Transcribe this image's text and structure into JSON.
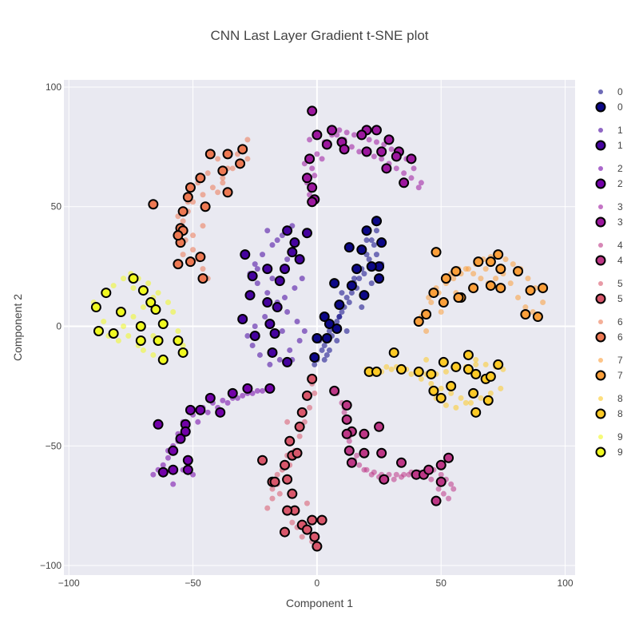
{
  "chart_data": {
    "type": "scatter",
    "title": "CNN Last Layer Gradient t-SNE plot",
    "xlabel": "Component 1",
    "ylabel": "Component 2",
    "xlim": [
      -102,
      104
    ],
    "ylim": [
      -104,
      103
    ],
    "x_ticks": [
      -100,
      -50,
      0,
      50,
      100
    ],
    "y_ticks": [
      -100,
      -50,
      0,
      50,
      100
    ],
    "x_tick_labels": [
      "−100",
      "−50",
      "0",
      "50",
      "100"
    ],
    "y_tick_labels": [
      "−100",
      "−50",
      "0",
      "50",
      "100"
    ],
    "grid": true,
    "legend_placement": "right",
    "plot_bg": "#e9e9f1",
    "colors": [
      "#0d0887",
      "#46039f",
      "#7201a8",
      "#9c179e",
      "#bd3786",
      "#d8576b",
      "#ed7953",
      "#fb9f3a",
      "#fdca26",
      "#f0f921"
    ],
    "legend": [
      {
        "label": "0",
        "color": "#0d0887"
      },
      {
        "label": "0",
        "color": "#0d0887"
      },
      {
        "label": "1",
        "color": "#46039f"
      },
      {
        "label": "1",
        "color": "#46039f"
      },
      {
        "label": "2",
        "color": "#7201a8"
      },
      {
        "label": "2",
        "color": "#7201a8"
      },
      {
        "label": "3",
        "color": "#9c179e"
      },
      {
        "label": "3",
        "color": "#9c179e"
      },
      {
        "label": "4",
        "color": "#bd3786"
      },
      {
        "label": "4",
        "color": "#bd3786"
      },
      {
        "label": "5",
        "color": "#d8576b"
      },
      {
        "label": "5",
        "color": "#d8576b"
      },
      {
        "label": "6",
        "color": "#ed7953"
      },
      {
        "label": "6",
        "color": "#ed7953"
      },
      {
        "label": "7",
        "color": "#fb9f3a"
      },
      {
        "label": "7",
        "color": "#fb9f3a"
      },
      {
        "label": "8",
        "color": "#fdca26"
      },
      {
        "label": "8",
        "color": "#fdca26"
      },
      {
        "label": "9",
        "color": "#f0f921"
      },
      {
        "label": "9",
        "color": "#f0f921"
      }
    ],
    "series": [
      {
        "name": "0",
        "marker": "small",
        "x": [
          0,
          3,
          5,
          8,
          10,
          12,
          15,
          18,
          20,
          22,
          24,
          25,
          2,
          6,
          9,
          13,
          16,
          19,
          21,
          23,
          1,
          4,
          7,
          11,
          14,
          17,
          26,
          -1,
          3,
          8,
          12,
          18,
          22,
          24,
          10,
          15,
          20,
          5,
          9
        ],
        "y": [
          -14,
          -8,
          -2,
          2,
          6,
          12,
          18,
          24,
          30,
          36,
          40,
          44,
          -10,
          -4,
          4,
          10,
          16,
          22,
          28,
          34,
          -6,
          -12,
          0,
          8,
          14,
          20,
          26,
          -16,
          -14,
          -6,
          -2,
          8,
          18,
          30,
          14,
          20,
          36,
          -10,
          4
        ]
      },
      {
        "name": "0",
        "marker": "large",
        "x": [
          24,
          20,
          26,
          13,
          18,
          25,
          22,
          16,
          7,
          14,
          19,
          25,
          9,
          3,
          5,
          8,
          0,
          4,
          -1,
          24
        ],
        "y": [
          44,
          40,
          35,
          33,
          32,
          25,
          25,
          24,
          18,
          17,
          13,
          20,
          9,
          4,
          1,
          -1,
          -5,
          -5,
          -13,
          44
        ]
      },
      {
        "name": "1",
        "marker": "small",
        "x": [
          -10,
          -14,
          -18,
          -22,
          -25,
          -27,
          -24,
          -20,
          -16,
          -12,
          -8,
          -5,
          -7,
          -11,
          -15,
          -19,
          -23,
          -26,
          -28,
          -25,
          -21,
          -17,
          -13,
          -9,
          -6,
          -12,
          -16,
          -20,
          -24,
          -10,
          -14,
          -18
        ],
        "y": [
          42,
          38,
          34,
          30,
          26,
          22,
          18,
          14,
          10,
          6,
          2,
          -2,
          -6,
          -10,
          -14,
          -16,
          -12,
          -8,
          -4,
          0,
          4,
          8,
          12,
          16,
          20,
          28,
          36,
          40,
          24,
          -14,
          -2,
          20
        ]
      },
      {
        "name": "1",
        "marker": "large",
        "x": [
          -4,
          -12,
          -29,
          -10,
          -20,
          -26,
          -13,
          -15,
          -27,
          -20,
          -16,
          -30,
          -19,
          -17,
          -18,
          -25,
          -12,
          -7,
          -9
        ],
        "y": [
          39,
          40,
          30,
          31,
          24,
          21,
          24,
          19,
          13,
          10,
          8,
          3,
          1,
          -3,
          -11,
          -4,
          -15,
          28,
          35
        ]
      },
      {
        "name": "2",
        "marker": "small",
        "x": [
          -18,
          -22,
          -26,
          -30,
          -34,
          -38,
          -42,
          -46,
          -50,
          -54,
          -56,
          -58,
          -60,
          -62,
          -64,
          -66,
          -60,
          -56,
          -52,
          -48,
          -44,
          -40,
          -36,
          -32,
          -28,
          -24,
          -20,
          -54,
          -50,
          -58
        ],
        "y": [
          -26,
          -27,
          -28,
          -29,
          -30,
          -31,
          -32,
          -34,
          -37,
          -40,
          -45,
          -50,
          -55,
          -58,
          -60,
          -62,
          -52,
          -48,
          -44,
          -40,
          -36,
          -34,
          -32,
          -30,
          -28,
          -27,
          -26,
          -60,
          -62,
          -66
        ]
      },
      {
        "name": "2",
        "marker": "large",
        "x": [
          -19,
          -28,
          -34,
          -43,
          -39,
          -47,
          -51,
          -53,
          -64,
          -55,
          -58,
          -52,
          -52,
          -58,
          -62,
          -53
        ],
        "y": [
          -26,
          -26,
          -28,
          -30,
          -36,
          -35,
          -35,
          -41,
          -41,
          -47,
          -52,
          -56,
          -60,
          -60,
          -61,
          -44
        ]
      },
      {
        "name": "3",
        "marker": "small",
        "x": [
          -4,
          -2,
          0,
          3,
          6,
          9,
          12,
          15,
          18,
          21,
          24,
          27,
          30,
          33,
          36,
          39,
          42,
          -3,
          -1,
          2,
          5,
          8,
          11,
          14,
          17,
          20,
          23,
          26,
          29,
          32,
          35,
          38,
          41,
          -5,
          -3
        ],
        "y": [
          60,
          66,
          72,
          77,
          80,
          82,
          81,
          80,
          79,
          78,
          77,
          76,
          74,
          72,
          70,
          66,
          60,
          55,
          63,
          70,
          76,
          80,
          78,
          75,
          73,
          72,
          71,
          70,
          68,
          66,
          64,
          62,
          58,
          68,
          78
        ]
      },
      {
        "name": "3",
        "marker": "large",
        "x": [
          -2,
          0,
          4,
          6,
          10,
          11,
          20,
          18,
          24,
          29,
          20,
          26,
          28,
          -3,
          -2,
          -4,
          -1,
          -2,
          33,
          32,
          38,
          35
        ],
        "y": [
          90,
          80,
          76,
          82,
          77,
          74,
          82,
          80,
          82,
          78,
          73,
          73,
          66,
          70,
          58,
          62,
          53,
          52,
          73,
          71,
          70,
          60
        ]
      },
      {
        "name": "4",
        "marker": "small",
        "x": [
          8,
          10,
          11,
          12,
          12,
          13,
          14,
          15,
          17,
          20,
          23,
          26,
          29,
          32,
          35,
          38,
          41,
          44,
          47,
          50,
          52,
          54,
          55,
          11,
          13,
          16,
          19,
          22,
          25,
          28,
          31,
          34,
          37,
          40,
          43,
          46,
          49,
          51,
          53
        ],
        "y": [
          -28,
          -32,
          -36,
          -40,
          -44,
          -48,
          -52,
          -56,
          -58,
          -60,
          -61,
          -62,
          -62,
          -62,
          -62,
          -61,
          -61,
          -60,
          -60,
          -62,
          -64,
          -66,
          -68,
          -34,
          -46,
          -54,
          -60,
          -62,
          -63,
          -64,
          -64,
          -63,
          -62,
          -62,
          -62,
          -64,
          -68,
          -70,
          -72
        ]
      },
      {
        "name": "4",
        "marker": "large",
        "x": [
          7,
          12,
          12,
          14,
          12,
          13,
          14,
          19,
          19,
          25,
          26,
          34,
          27,
          40,
          43,
          45,
          50,
          50,
          53,
          48
        ],
        "y": [
          -27,
          -33,
          -39,
          -44,
          -45,
          -52,
          -57,
          -45,
          -53,
          -42,
          -53,
          -57,
          -64,
          -62,
          -62,
          -60,
          -58,
          -65,
          -55,
          -73
        ]
      },
      {
        "name": "5",
        "marker": "small",
        "x": [
          -2,
          -4,
          -6,
          -8,
          -10,
          -12,
          -14,
          -16,
          -18,
          -20,
          -15,
          -13,
          -11,
          -9,
          -7,
          -5,
          -3,
          -1,
          2,
          -10,
          -14,
          -6,
          -8,
          -12,
          -4,
          -2,
          0,
          -16,
          -18,
          -12
        ],
        "y": [
          -24,
          -30,
          -36,
          -42,
          -48,
          -54,
          -60,
          -66,
          -72,
          -76,
          -70,
          -64,
          -58,
          -52,
          -46,
          -40,
          -34,
          -28,
          -80,
          -82,
          -86,
          -88,
          -84,
          -78,
          -74,
          -90,
          -92,
          -62,
          -68,
          -40
        ]
      },
      {
        "name": "5",
        "marker": "large",
        "x": [
          -2,
          -4,
          -6,
          -7,
          -11,
          -10,
          -8,
          -13,
          -22,
          -18,
          -12,
          -10,
          -17,
          -9,
          -12,
          -6,
          -4,
          -2,
          2,
          0,
          -13,
          -1
        ],
        "y": [
          -22,
          -29,
          -36,
          -42,
          -48,
          -54,
          -53,
          -58,
          -56,
          -65,
          -64,
          -70,
          -65,
          -77,
          -77,
          -83,
          -85,
          -81,
          -81,
          -92,
          -86,
          -88
        ]
      },
      {
        "name": "6",
        "marker": "small",
        "x": [
          -30,
          -28,
          -34,
          -38,
          -42,
          -46,
          -50,
          -52,
          -54,
          -55,
          -53,
          -50,
          -48,
          -46,
          -44,
          -40,
          -36,
          -32,
          -28,
          -56,
          -54,
          -48,
          -44,
          -40,
          -36,
          -50,
          -46,
          -52,
          -38
        ],
        "y": [
          75,
          70,
          66,
          62,
          58,
          55,
          52,
          48,
          44,
          40,
          36,
          32,
          28,
          24,
          20,
          56,
          66,
          72,
          78,
          46,
          30,
          60,
          64,
          70,
          72,
          38,
          42,
          52,
          60
        ]
      },
      {
        "name": "6",
        "marker": "large",
        "x": [
          -66,
          -43,
          -36,
          -30,
          -31,
          -38,
          -47,
          -51,
          -52,
          -36,
          -45,
          -54,
          -55,
          -54,
          -55,
          -56,
          -51,
          -56,
          -47,
          -46
        ],
        "y": [
          51,
          72,
          72,
          74,
          68,
          65,
          62,
          58,
          54,
          56,
          50,
          48,
          41,
          40,
          35,
          38,
          27,
          26,
          29,
          20
        ]
      },
      {
        "name": "7",
        "marker": "small",
        "x": [
          40,
          43,
          46,
          49,
          52,
          55,
          58,
          61,
          64,
          67,
          70,
          73,
          76,
          79,
          82,
          85,
          88,
          91,
          42,
          45,
          48,
          51,
          54,
          57,
          60,
          63,
          66,
          69,
          72,
          75,
          78,
          81,
          84,
          87,
          90,
          44,
          50,
          56,
          62,
          68
        ],
        "y": [
          2,
          6,
          10,
          14,
          18,
          20,
          22,
          24,
          26,
          28,
          29,
          30,
          28,
          26,
          24,
          20,
          16,
          10,
          4,
          12,
          16,
          20,
          22,
          24,
          24,
          22,
          20,
          18,
          20,
          22,
          18,
          12,
          8,
          6,
          4,
          -2,
          6,
          14,
          16,
          24
        ]
      },
      {
        "name": "7",
        "marker": "large",
        "x": [
          48,
          73,
          65,
          70,
          74,
          52,
          56,
          58,
          63,
          70,
          74,
          81,
          86,
          91,
          41,
          44,
          47,
          51,
          57,
          84,
          89
        ],
        "y": [
          31,
          30,
          27,
          27,
          24,
          20,
          23,
          12,
          16,
          17,
          16,
          23,
          15,
          16,
          2,
          5,
          14,
          10,
          12,
          5,
          4
        ]
      },
      {
        "name": "8",
        "marker": "small",
        "x": [
          20,
          24,
          28,
          32,
          36,
          40,
          44,
          48,
          52,
          56,
          60,
          64,
          68,
          72,
          75,
          22,
          26,
          30,
          34,
          38,
          42,
          46,
          50,
          54,
          58,
          62,
          66,
          70,
          74,
          44,
          48,
          52,
          56,
          60,
          64
        ],
        "y": [
          -18,
          -18,
          -17,
          -17,
          -18,
          -19,
          -20,
          -20,
          -19,
          -18,
          -17,
          -16,
          -16,
          -17,
          -18,
          -20,
          -19,
          -18,
          -18,
          -20,
          -22,
          -24,
          -26,
          -28,
          -30,
          -32,
          -30,
          -28,
          -26,
          -14,
          -30,
          -33,
          -34,
          -32,
          -14
        ]
      },
      {
        "name": "8",
        "marker": "large",
        "x": [
          31,
          61,
          21,
          24,
          34,
          41,
          46,
          51,
          56,
          61,
          64,
          68,
          70,
          73,
          47,
          54,
          63,
          69,
          50,
          64
        ],
        "y": [
          -11,
          -12,
          -19,
          -19,
          -18,
          -19,
          -20,
          -15,
          -17,
          -18,
          -20,
          -22,
          -21,
          -16,
          -27,
          -25,
          -28,
          -31,
          -30,
          -36
        ]
      },
      {
        "name": "9",
        "marker": "small",
        "x": [
          -90,
          -86,
          -82,
          -78,
          -75,
          -72,
          -68,
          -64,
          -60,
          -58,
          -56,
          -54,
          -88,
          -84,
          -80,
          -76,
          -72,
          -70,
          -66,
          -62,
          -66,
          -70,
          -74,
          -78,
          -82,
          -86,
          -74,
          -70,
          -66,
          -62
        ],
        "y": [
          10,
          14,
          17,
          20,
          22,
          20,
          18,
          14,
          10,
          6,
          -2,
          -8,
          -2,
          -4,
          -6,
          -4,
          -8,
          -10,
          -12,
          -14,
          12,
          8,
          4,
          0,
          -2,
          2,
          16,
          -6,
          -4,
          0
        ]
      },
      {
        "name": "9",
        "marker": "large",
        "x": [
          -74,
          -85,
          -70,
          -89,
          -79,
          -67,
          -65,
          -62,
          -71,
          -82,
          -88,
          -71,
          -56,
          -54,
          -62,
          -64
        ],
        "y": [
          20,
          14,
          15,
          8,
          6,
          10,
          7,
          1,
          0,
          -3,
          -2,
          -6,
          -6,
          -11,
          -14,
          -6
        ]
      }
    ]
  }
}
